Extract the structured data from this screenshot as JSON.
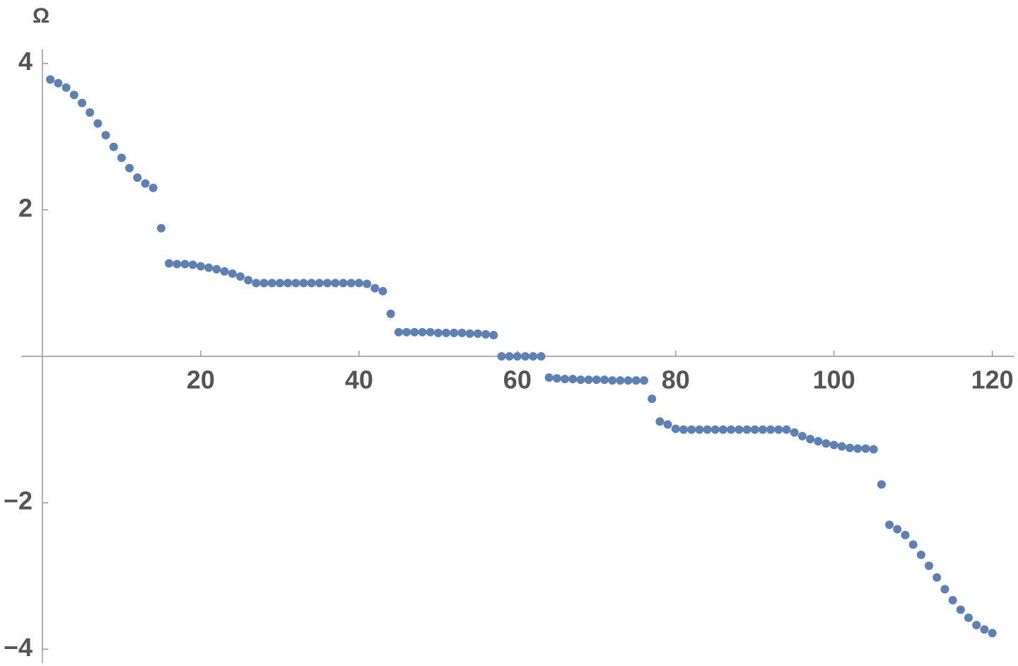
{
  "chart_data": {
    "type": "scatter",
    "ylabel": "Ω",
    "color": "#5e81b5",
    "x": [
      1,
      2,
      3,
      4,
      5,
      6,
      7,
      8,
      9,
      10,
      11,
      12,
      13,
      14,
      15,
      16,
      17,
      18,
      19,
      20,
      21,
      22,
      23,
      24,
      25,
      26,
      27,
      28,
      29,
      30,
      31,
      32,
      33,
      34,
      35,
      36,
      37,
      38,
      39,
      40,
      41,
      42,
      43,
      44,
      45,
      46,
      47,
      48,
      49,
      50,
      51,
      52,
      53,
      54,
      55,
      56,
      57,
      58,
      59,
      60,
      61,
      62,
      63,
      64,
      65,
      66,
      67,
      68,
      69,
      70,
      71,
      72,
      73,
      74,
      75,
      76,
      77,
      78,
      79,
      80,
      81,
      82,
      83,
      84,
      85,
      86,
      87,
      88,
      89,
      90,
      91,
      92,
      93,
      94,
      95,
      96,
      97,
      98,
      99,
      100,
      101,
      102,
      103,
      104,
      105,
      106,
      107,
      108,
      109,
      110,
      111,
      112,
      113,
      114,
      115,
      116,
      117,
      118,
      119,
      120
    ],
    "values": [
      3.78,
      3.73,
      3.67,
      3.57,
      3.46,
      3.33,
      3.18,
      3.02,
      2.86,
      2.71,
      2.57,
      2.44,
      2.36,
      2.3,
      1.75,
      1.27,
      1.26,
      1.26,
      1.25,
      1.23,
      1.21,
      1.19,
      1.16,
      1.13,
      1.09,
      1.04,
      1.0,
      1.0,
      1.0,
      1.0,
      1.0,
      1.0,
      1.0,
      1.0,
      1.0,
      1.0,
      1.0,
      1.0,
      1.0,
      1.0,
      0.99,
      0.93,
      0.89,
      0.58,
      0.33,
      0.33,
      0.33,
      0.33,
      0.33,
      0.32,
      0.32,
      0.32,
      0.32,
      0.31,
      0.31,
      0.3,
      0.29,
      0,
      0,
      0,
      0,
      0,
      0,
      -0.29,
      -0.3,
      -0.31,
      -0.31,
      -0.32,
      -0.32,
      -0.32,
      -0.32,
      -0.33,
      -0.33,
      -0.33,
      -0.33,
      -0.33,
      -0.58,
      -0.89,
      -0.93,
      -0.99,
      -1.0,
      -1.0,
      -1.0,
      -1.0,
      -1.0,
      -1.0,
      -1.0,
      -1.0,
      -1.0,
      -1.0,
      -1.0,
      -1.0,
      -1.0,
      -1.0,
      -1.04,
      -1.09,
      -1.13,
      -1.16,
      -1.19,
      -1.21,
      -1.23,
      -1.25,
      -1.26,
      -1.26,
      -1.27,
      -1.75,
      -2.3,
      -2.36,
      -2.44,
      -2.57,
      -2.71,
      -2.86,
      -3.02,
      -3.18,
      -3.33,
      -3.46,
      -3.57,
      -3.67,
      -3.73,
      -3.78
    ],
    "xlim": [
      0,
      122.8
    ],
    "ylim": [
      -4.19,
      4.19
    ],
    "xticks": [
      20,
      40,
      60,
      80,
      100,
      120
    ],
    "yticks": [
      {
        "value": -4,
        "label": "−4"
      },
      {
        "value": -2,
        "label": "−2"
      },
      2,
      4
    ]
  }
}
